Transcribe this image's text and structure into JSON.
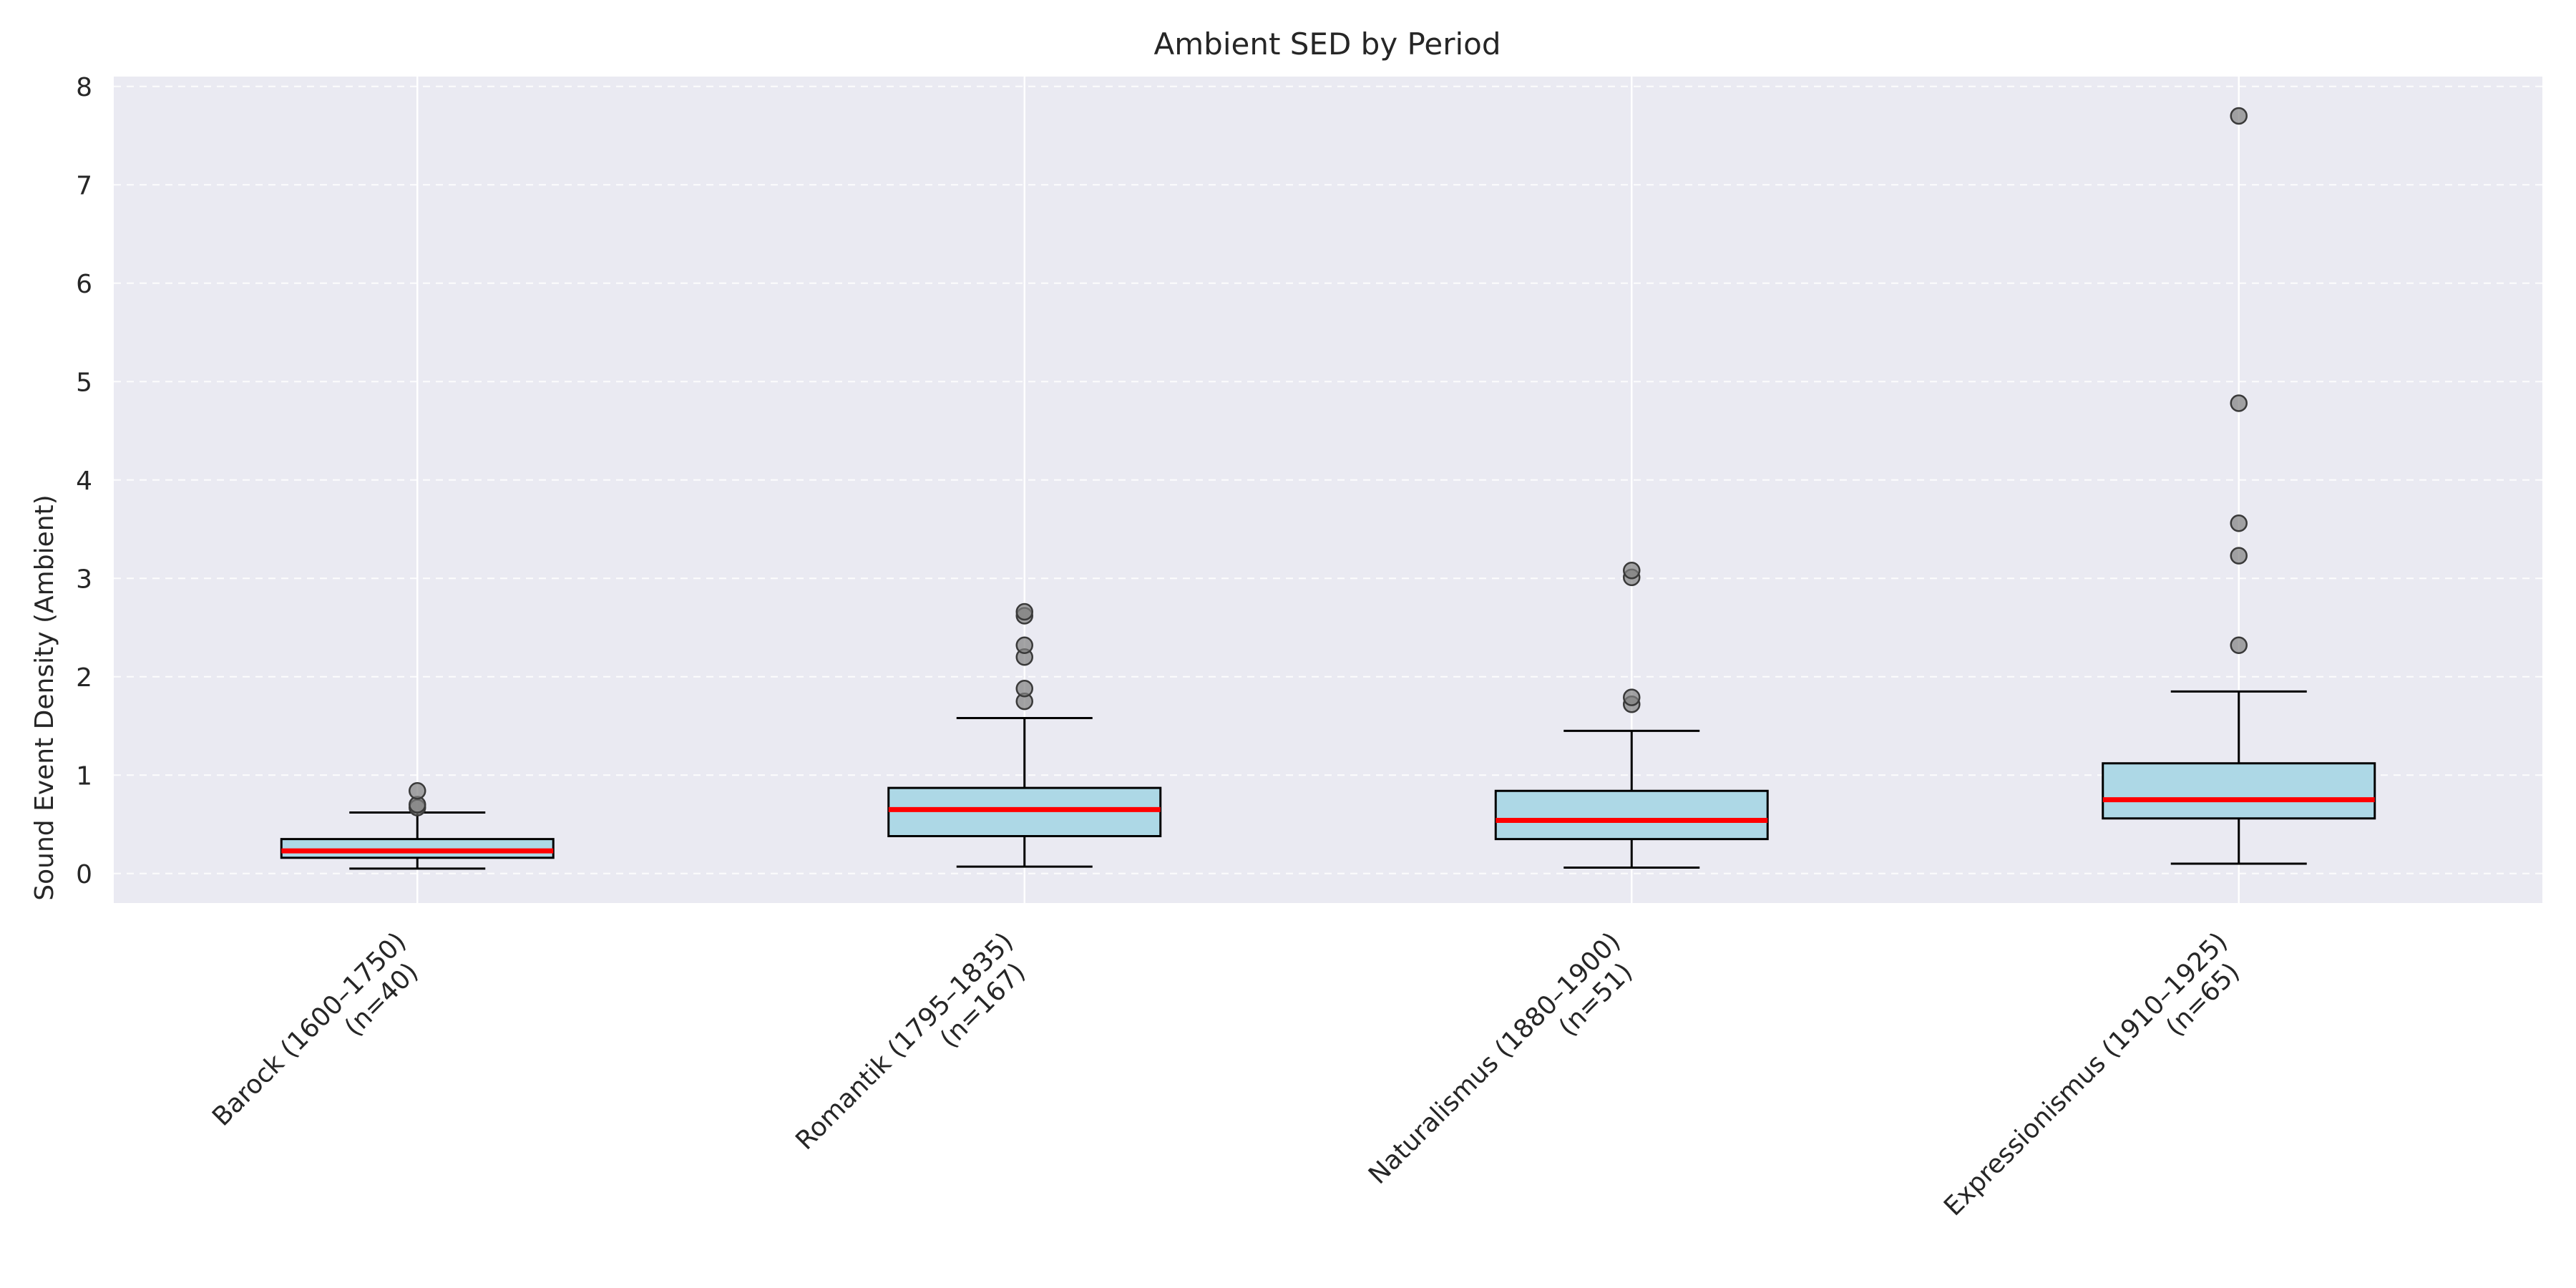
{
  "chart_data": {
    "type": "box",
    "title": "Ambient SED by Period",
    "xlabel": "",
    "ylabel": "Sound Event Density (Ambient)",
    "ylim": [
      -0.3,
      8.1
    ],
    "yticks": [
      0,
      1,
      2,
      3,
      4,
      5,
      6,
      7,
      8
    ],
    "grid": true,
    "legend": "none",
    "categories": [
      {
        "label_line1": "Barock (1600–1750)",
        "label_line2": "(n=40)",
        "whisker_low": 0.05,
        "q1": 0.16,
        "median": 0.23,
        "q3": 0.35,
        "whisker_high": 0.62,
        "outliers": [
          0.67,
          0.7,
          0.84
        ]
      },
      {
        "label_line1": "Romantik (1795–1835)",
        "label_line2": "(n=167)",
        "whisker_low": 0.07,
        "q1": 0.38,
        "median": 0.65,
        "q3": 0.87,
        "whisker_high": 1.58,
        "outliers": [
          1.75,
          1.88,
          2.2,
          2.32,
          2.62,
          2.66
        ]
      },
      {
        "label_line1": "Naturalismus (1880–1900)",
        "label_line2": "(n=51)",
        "whisker_low": 0.06,
        "q1": 0.35,
        "median": 0.54,
        "q3": 0.84,
        "whisker_high": 1.45,
        "outliers": [
          1.72,
          1.79,
          3.01,
          3.08
        ]
      },
      {
        "label_line1": "Expressionismus (1910–1925)",
        "label_line2": "(n=65)",
        "whisker_low": 0.1,
        "q1": 0.56,
        "median": 0.75,
        "q3": 1.12,
        "whisker_high": 1.85,
        "outliers": [
          2.32,
          3.23,
          3.56,
          4.78,
          7.7
        ]
      }
    ],
    "colors": {
      "box_fill": "#add8e6",
      "median": "#ff0000",
      "outlier_fill": "#808080",
      "plot_background": "#eaeaf2",
      "grid_major": "#ffffff"
    }
  }
}
